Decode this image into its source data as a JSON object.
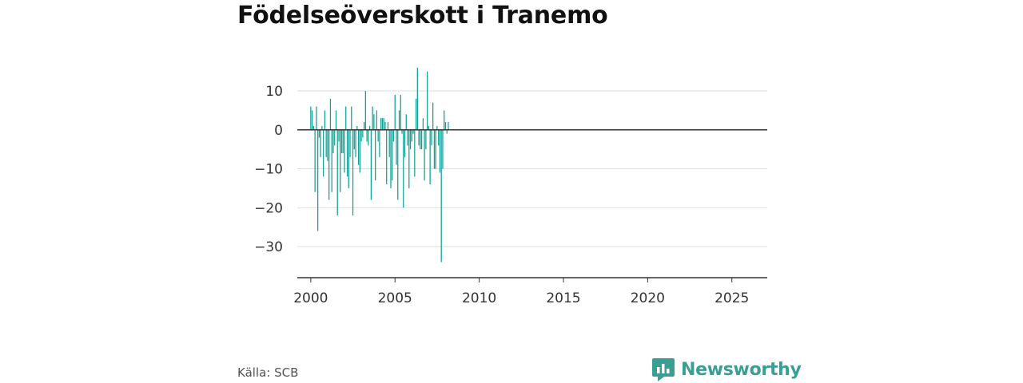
{
  "title": "Födelseöverskott i Tranemo",
  "source": "Källa: SCB",
  "brand": {
    "name": "Newsworthy",
    "icon": "newsworthy-logo-icon",
    "color": "#3a9e93"
  },
  "colors": {
    "bar": "#14a195",
    "grid": "#dddddd",
    "zero": "#333333",
    "axis": "#333333"
  },
  "chart_data": {
    "type": "bar",
    "title": "Födelseöverskott i Tranemo",
    "xlabel": "",
    "ylabel": "",
    "ylim": [
      -38,
      18
    ],
    "xlim": [
      1999.2,
      2027.1
    ],
    "yticks": [
      10,
      0,
      -10,
      -20,
      -30
    ],
    "ytick_labels": [
      "10",
      "0",
      "−10",
      "−20",
      "−30"
    ],
    "xticks": [
      2000,
      2005,
      2010,
      2015,
      2020,
      2025
    ],
    "xtick_labels": [
      "2000",
      "2005",
      "2010",
      "2015",
      "2020",
      "2025"
    ],
    "grid": true,
    "frequency": "monthly",
    "start": "2000-01",
    "values": [
      6,
      5,
      1,
      -16,
      6,
      -26,
      -2,
      -7,
      1,
      -12,
      5,
      -7,
      -8,
      -18,
      8,
      -16,
      -6,
      -4,
      5,
      -22,
      -3,
      -16,
      -6,
      -6,
      -11,
      6,
      -12,
      -15,
      -7,
      6,
      -22,
      -5,
      -7,
      1,
      -9,
      -11,
      -3,
      -2,
      2,
      10,
      -3,
      -4,
      1,
      -18,
      6,
      4,
      -13,
      5,
      -3,
      -7,
      3,
      3,
      3,
      2,
      -14,
      2,
      -7,
      -15,
      -13,
      -3,
      9,
      -9,
      -18,
      5,
      9,
      -1,
      -20,
      -7,
      4,
      -4,
      -15,
      -5,
      -3,
      -1,
      -12,
      8,
      16,
      -4,
      -5,
      -5,
      3,
      -13,
      -5,
      15,
      1,
      -14,
      -4,
      7,
      -10,
      -10,
      1,
      -4,
      -11,
      -34,
      -10,
      5,
      2,
      -1,
      2
    ]
  }
}
